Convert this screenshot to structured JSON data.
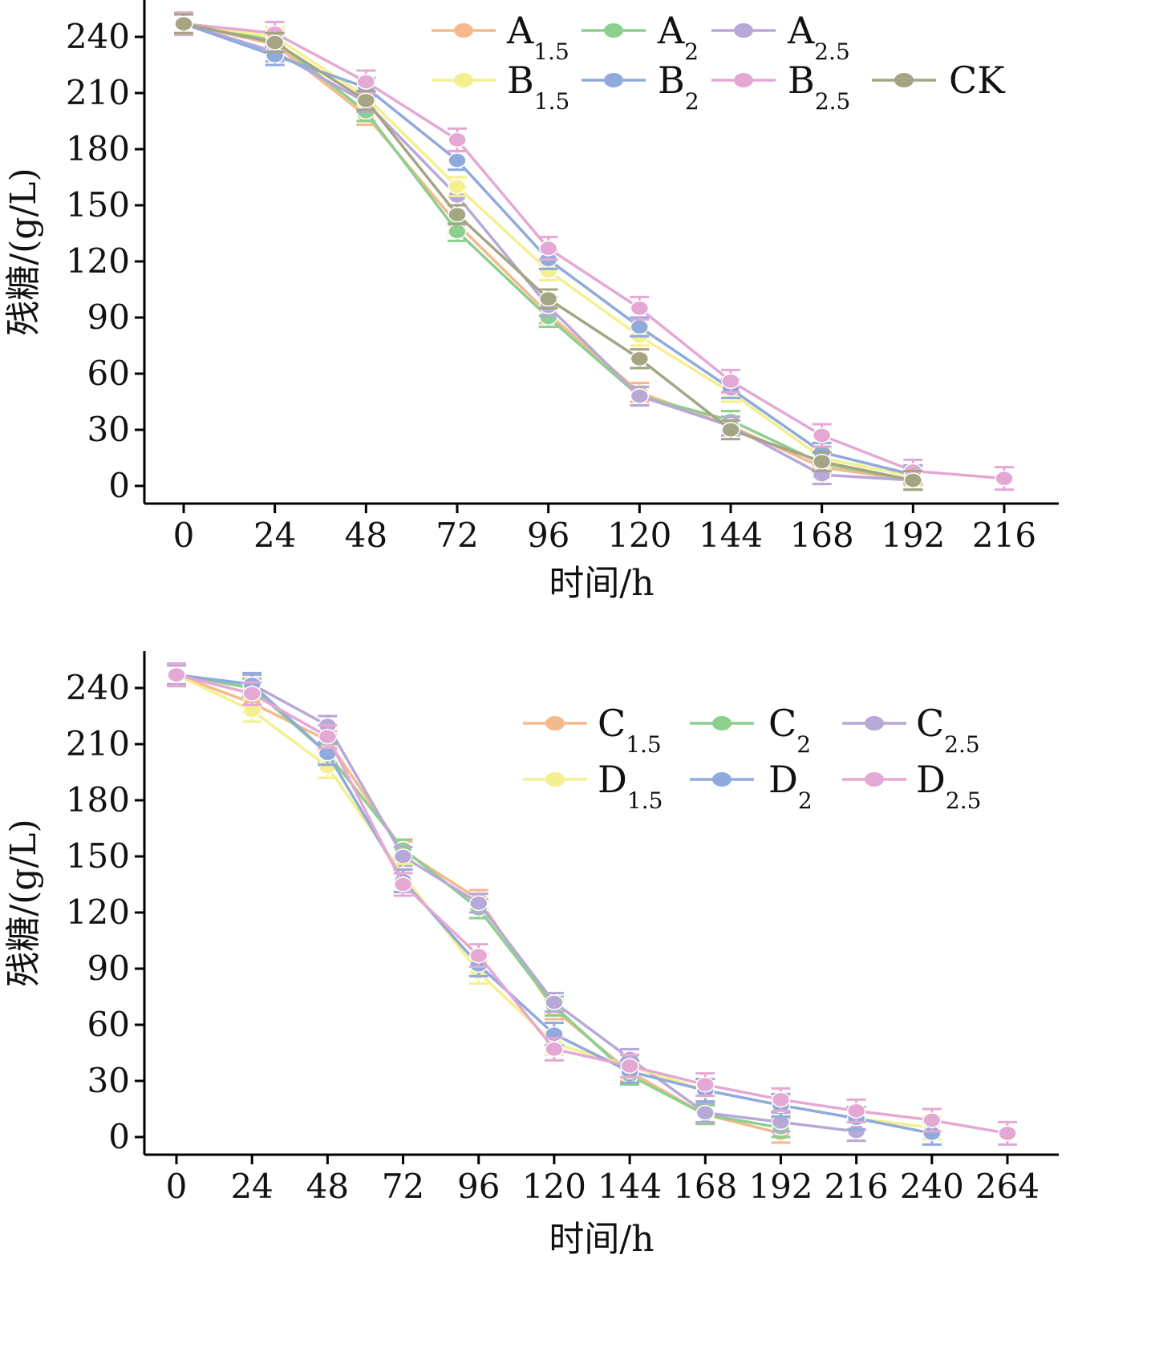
{
  "chart_data": [
    {
      "type": "line",
      "xlabel": "时间/h",
      "ylabel": "残糖/(g/L)",
      "x_ticks": [
        0,
        24,
        48,
        72,
        96,
        120,
        144,
        168,
        192,
        216
      ],
      "y_ticks": [
        0,
        30,
        60,
        90,
        120,
        150,
        180,
        210,
        240
      ],
      "xlim": [
        -10,
        235
      ],
      "ylim": [
        -10,
        260
      ],
      "legend_position": "top-right",
      "legend_columns": 4,
      "series": [
        {
          "name": "A",
          "sub": "1.5",
          "color": "#f5b98b",
          "x": [
            0,
            24,
            48,
            72,
            96,
            120,
            144,
            168,
            192
          ],
          "values": [
            247,
            236,
            198,
            140,
            92,
            50,
            32,
            10,
            3
          ],
          "err": 5
        },
        {
          "name": "A",
          "sub": "2",
          "color": "#8ccf8e",
          "x": [
            0,
            24,
            48,
            72,
            96,
            120,
            144,
            168,
            192
          ],
          "values": [
            247,
            238,
            200,
            136,
            90,
            48,
            35,
            12,
            3
          ],
          "err": 5
        },
        {
          "name": "A",
          "sub": "2.5",
          "color": "#b7a8d8",
          "x": [
            0,
            24,
            48,
            72,
            96,
            120,
            144,
            168,
            192
          ],
          "values": [
            247,
            232,
            205,
            155,
            96,
            48,
            32,
            6,
            3
          ],
          "err": 5
        },
        {
          "name": "B",
          "sub": "1.5",
          "color": "#f4ef8f",
          "x": [
            0,
            24,
            48,
            72,
            96,
            120,
            144,
            168,
            192
          ],
          "values": [
            247,
            240,
            208,
            160,
            115,
            80,
            50,
            15,
            5
          ],
          "err": 5
        },
        {
          "name": "B",
          "sub": "2",
          "color": "#8faadc",
          "x": [
            0,
            24,
            48,
            72,
            96,
            120,
            144,
            168,
            192
          ],
          "values": [
            247,
            230,
            213,
            174,
            121,
            85,
            52,
            18,
            6
          ],
          "err": 5
        },
        {
          "name": "B",
          "sub": "2.5",
          "color": "#e5a8d4",
          "x": [
            0,
            24,
            48,
            72,
            96,
            120,
            144,
            168,
            192,
            216
          ],
          "values": [
            247,
            242,
            216,
            185,
            127,
            95,
            56,
            27,
            8,
            4
          ],
          "err": 6
        },
        {
          "name": "CK",
          "sub": "",
          "color": "#a5a583",
          "x": [
            0,
            24,
            48,
            72,
            96,
            120,
            144,
            168,
            192
          ],
          "values": [
            247,
            237,
            206,
            145,
            100,
            68,
            30,
            13,
            3
          ],
          "err": 5
        }
      ]
    },
    {
      "type": "line",
      "xlabel": "时间/h",
      "ylabel": "残糖/(g/L)",
      "x_ticks": [
        0,
        24,
        48,
        72,
        96,
        120,
        144,
        168,
        192,
        216,
        240,
        264
      ],
      "y_ticks": [
        0,
        30,
        60,
        90,
        120,
        150,
        180,
        210,
        240
      ],
      "xlim": [
        -10,
        280
      ],
      "ylim": [
        -10,
        260
      ],
      "legend_position": "top-right",
      "legend_columns": 3,
      "series": [
        {
          "name": "C",
          "sub": "1.5",
          "color": "#f5b98b",
          "x": [
            0,
            24,
            48,
            72,
            96,
            120,
            144,
            168,
            192
          ],
          "values": [
            247,
            232,
            212,
            153,
            127,
            68,
            35,
            12,
            2
          ],
          "err": 5
        },
        {
          "name": "C",
          "sub": "2",
          "color": "#8ccf8e",
          "x": [
            0,
            24,
            48,
            72,
            96,
            120,
            144,
            168,
            192
          ],
          "values": [
            247,
            240,
            205,
            154,
            122,
            70,
            33,
            12,
            5
          ],
          "err": 5
        },
        {
          "name": "C",
          "sub": "2.5",
          "color": "#b7a8d8",
          "x": [
            0,
            24,
            48,
            72,
            96,
            120,
            144,
            168,
            192,
            216
          ],
          "values": [
            247,
            242,
            220,
            150,
            125,
            72,
            42,
            13,
            8,
            3
          ],
          "err": 5
        },
        {
          "name": "D",
          "sub": "1.5",
          "color": "#f4ef8f",
          "x": [
            0,
            24,
            48,
            72,
            96,
            120,
            144,
            168,
            192,
            216,
            240
          ],
          "values": [
            247,
            228,
            198,
            140,
            88,
            50,
            38,
            25,
            17,
            10,
            5
          ],
          "err": 6
        },
        {
          "name": "D",
          "sub": "2",
          "color": "#8faadc",
          "x": [
            0,
            24,
            48,
            72,
            96,
            120,
            144,
            168,
            192,
            216,
            240
          ],
          "values": [
            247,
            242,
            205,
            137,
            92,
            55,
            35,
            25,
            17,
            10,
            2
          ],
          "err": 6
        },
        {
          "name": "D",
          "sub": "2.5",
          "color": "#e5a8d4",
          "x": [
            0,
            24,
            48,
            72,
            96,
            120,
            144,
            168,
            192,
            216,
            240,
            264
          ],
          "values": [
            247,
            237,
            214,
            135,
            97,
            47,
            38,
            28,
            20,
            14,
            9,
            2
          ],
          "err": 6
        }
      ]
    }
  ]
}
